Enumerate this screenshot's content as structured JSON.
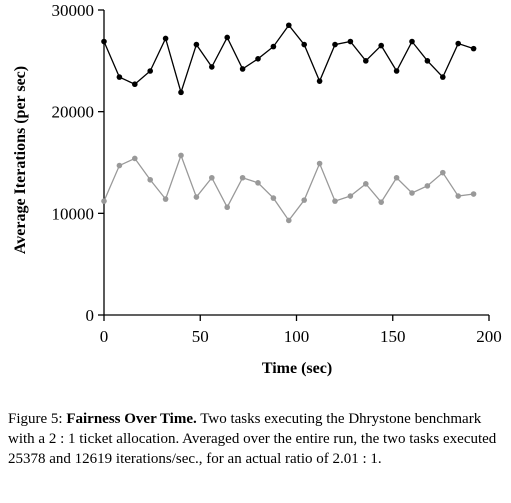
{
  "chart_data": {
    "type": "line",
    "title": "",
    "xlabel": "Time (sec)",
    "ylabel": "Average Iterations (per sec)",
    "xlim": [
      0,
      200
    ],
    "ylim": [
      0,
      30000
    ],
    "xticks": [
      0,
      50,
      100,
      150,
      200
    ],
    "xtick_labels": [
      "0",
      "50",
      "100",
      "150",
      "200"
    ],
    "yticks": [
      0,
      10000,
      20000,
      30000
    ],
    "ytick_labels": [
      "0",
      "10000",
      "20000",
      "30000"
    ],
    "grid": false,
    "legend": "none",
    "series": [
      {
        "color": "#000000",
        "x": [
          0,
          8,
          16,
          24,
          32,
          40,
          48,
          56,
          64,
          72,
          80,
          88,
          96,
          104,
          112,
          120,
          128,
          136,
          144,
          152,
          160,
          168,
          176,
          184,
          192
        ],
        "y": [
          26900,
          23400,
          22700,
          24000,
          27200,
          21900,
          26600,
          24400,
          27300,
          24200,
          25200,
          26400,
          28500,
          26600,
          23000,
          26600,
          26900,
          25000,
          26500,
          24000,
          26900,
          25000,
          23400,
          26700,
          26200
        ]
      },
      {
        "color": "#999999",
        "x": [
          0,
          8,
          16,
          24,
          32,
          40,
          48,
          56,
          64,
          72,
          80,
          88,
          96,
          104,
          112,
          120,
          128,
          136,
          144,
          152,
          160,
          168,
          176,
          184,
          192
        ],
        "y": [
          11200,
          14700,
          15400,
          13300,
          11400,
          15700,
          11600,
          13500,
          10600,
          13500,
          13000,
          11500,
          9300,
          11300,
          14900,
          11200,
          11700,
          12900,
          11100,
          13500,
          12000,
          12700,
          14000,
          11700,
          11900
        ]
      }
    ]
  },
  "caption": {
    "label": "Figure 5:",
    "title": "Fairness Over Time.",
    "body": "Two tasks executing the Dhrystone benchmark with a 2 : 1 ticket allocation. Averaged over the entire run, the two tasks executed 25378 and 12619 iterations/sec., for an actual ratio of 2.01 : 1."
  }
}
